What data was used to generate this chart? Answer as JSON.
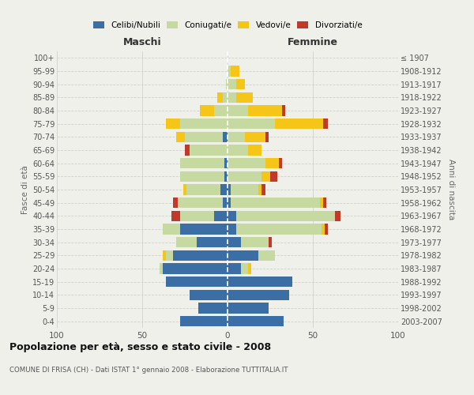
{
  "age_groups": [
    "0-4",
    "5-9",
    "10-14",
    "15-19",
    "20-24",
    "25-29",
    "30-34",
    "35-39",
    "40-44",
    "45-49",
    "50-54",
    "55-59",
    "60-64",
    "65-69",
    "70-74",
    "75-79",
    "80-84",
    "85-89",
    "90-94",
    "95-99",
    "100+"
  ],
  "birth_years": [
    "2003-2007",
    "1998-2002",
    "1993-1997",
    "1988-1992",
    "1983-1987",
    "1978-1982",
    "1973-1977",
    "1968-1972",
    "1963-1967",
    "1958-1962",
    "1953-1957",
    "1948-1952",
    "1943-1947",
    "1938-1942",
    "1933-1937",
    "1928-1932",
    "1923-1927",
    "1918-1922",
    "1913-1917",
    "1908-1912",
    "≤ 1907"
  ],
  "male": {
    "celibi": [
      28,
      17,
      22,
      36,
      38,
      32,
      18,
      28,
      8,
      3,
      4,
      2,
      2,
      0,
      3,
      0,
      0,
      0,
      0,
      0,
      0
    ],
    "coniugati": [
      0,
      0,
      0,
      0,
      2,
      4,
      12,
      10,
      20,
      26,
      20,
      26,
      26,
      22,
      22,
      28,
      8,
      3,
      1,
      0,
      0
    ],
    "vedovi": [
      0,
      0,
      0,
      0,
      0,
      2,
      0,
      0,
      0,
      0,
      2,
      0,
      0,
      0,
      5,
      8,
      8,
      3,
      0,
      0,
      0
    ],
    "divorziati": [
      0,
      0,
      0,
      0,
      0,
      0,
      0,
      0,
      5,
      3,
      0,
      0,
      0,
      3,
      0,
      0,
      0,
      0,
      0,
      0,
      0
    ]
  },
  "female": {
    "nubili": [
      33,
      24,
      36,
      38,
      8,
      18,
      8,
      5,
      5,
      2,
      2,
      0,
      0,
      0,
      0,
      0,
      0,
      0,
      0,
      0,
      0
    ],
    "coniugate": [
      0,
      0,
      0,
      0,
      4,
      10,
      16,
      50,
      58,
      52,
      16,
      20,
      22,
      12,
      10,
      28,
      12,
      5,
      5,
      2,
      0
    ],
    "vedove": [
      0,
      0,
      0,
      0,
      2,
      0,
      0,
      2,
      0,
      2,
      2,
      5,
      8,
      8,
      12,
      28,
      20,
      10,
      5,
      5,
      0
    ],
    "divorziate": [
      0,
      0,
      0,
      0,
      0,
      0,
      2,
      2,
      3,
      2,
      2,
      4,
      2,
      0,
      2,
      3,
      2,
      0,
      0,
      0,
      0
    ]
  },
  "colors": {
    "celibi": "#3a6ea5",
    "coniugati": "#c5d9a0",
    "vedovi": "#f5c518",
    "divorziati": "#c0392b"
  },
  "title": "Popolazione per età, sesso e stato civile - 2008",
  "subtitle": "COMUNE DI FRISA (CH) - Dati ISTAT 1° gennaio 2008 - Elaborazione TUTTITALIA.IT",
  "xlabel_left": "Maschi",
  "xlabel_right": "Femmine",
  "ylabel_left": "Fasce di età",
  "ylabel_right": "Anni di nascita",
  "xlim": 100,
  "bg_color": "#f0f0eb",
  "grid_color": "#d0d0cc"
}
